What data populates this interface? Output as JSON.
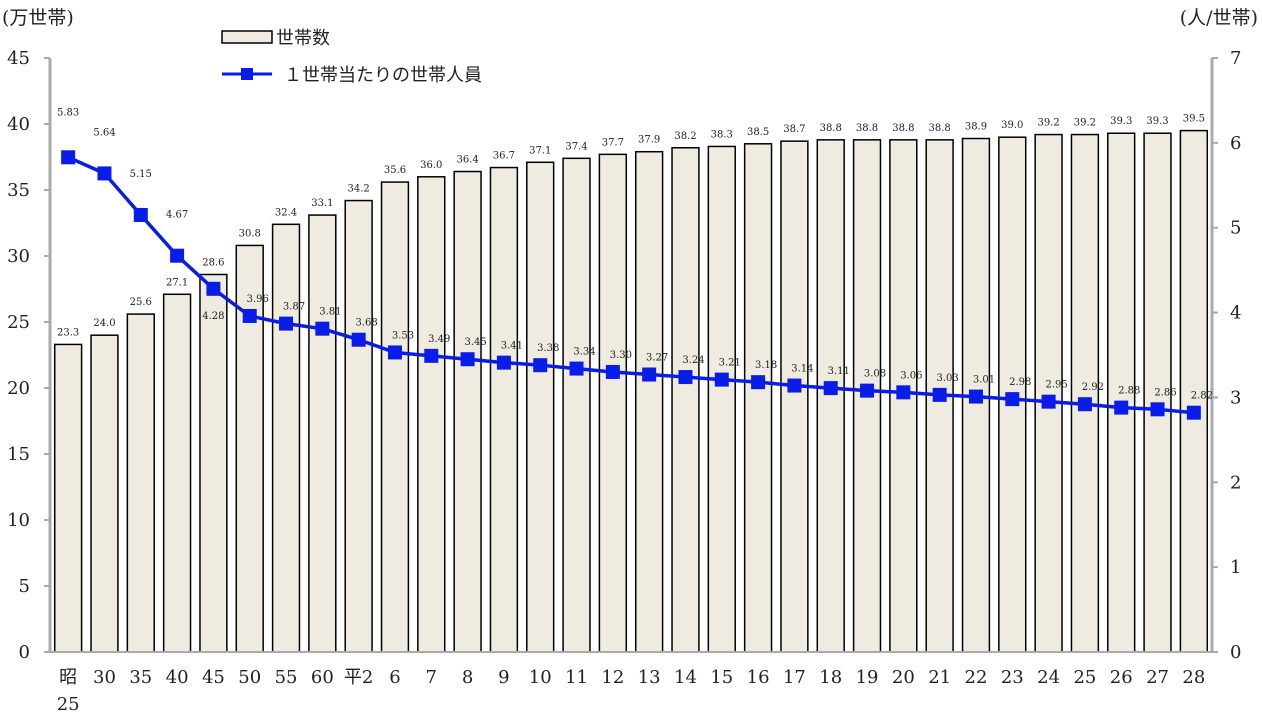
{
  "chart_data": {
    "type": "bar+line",
    "left_axis_label": "(万世帯)",
    "right_axis_label": "(人/世帯)",
    "left_ylim": [
      0,
      45
    ],
    "left_ticks": [
      0,
      5,
      10,
      15,
      20,
      25,
      30,
      35,
      40,
      45
    ],
    "right_ylim": [
      0,
      7
    ],
    "right_ticks": [
      0,
      1,
      2,
      3,
      4,
      5,
      6,
      7
    ],
    "categories": [
      "昭\n25",
      "30",
      "35",
      "40",
      "45",
      "50",
      "55",
      "60",
      "平2",
      "6",
      "7",
      "8",
      "9",
      "10",
      "11",
      "12",
      "13",
      "14",
      "15",
      "16",
      "17",
      "18",
      "19",
      "20",
      "21",
      "22",
      "23",
      "24",
      "25",
      "26",
      "27",
      "28"
    ],
    "series": [
      {
        "name": "世帯数",
        "kind": "bar",
        "axis": "left",
        "color": "#efebe0",
        "values": [
          23.3,
          24.0,
          25.6,
          27.1,
          28.6,
          30.8,
          32.4,
          33.1,
          34.2,
          35.6,
          36.0,
          36.4,
          36.7,
          37.1,
          37.4,
          37.7,
          37.9,
          38.2,
          38.3,
          38.5,
          38.7,
          38.8,
          38.8,
          38.8,
          38.8,
          38.9,
          39.0,
          39.2,
          39.2,
          39.3,
          39.3,
          39.5
        ],
        "labels": [
          "23.3",
          "24.0",
          "25.6",
          "27.1",
          "28.6",
          "30.8",
          "32.4",
          "33.1",
          "34.2",
          "35.6",
          "36.0",
          "36.4",
          "36.7",
          "37.1",
          "37.4",
          "37.7",
          "37.9",
          "38.2",
          "38.3",
          "38.5",
          "38.7",
          "38.8",
          "38.8",
          "38.8",
          "38.8",
          "38.9",
          "39.0",
          "39.2",
          "39.2",
          "39.3",
          "39.3",
          "39.5"
        ]
      },
      {
        "name": "１世帯当たりの世帯人員",
        "kind": "line",
        "axis": "right",
        "color": "#0a1de8",
        "values": [
          5.83,
          5.64,
          5.15,
          4.67,
          4.28,
          3.96,
          3.87,
          3.81,
          3.68,
          3.53,
          3.49,
          3.45,
          3.41,
          3.38,
          3.34,
          3.3,
          3.27,
          3.24,
          3.21,
          3.18,
          3.14,
          3.11,
          3.08,
          3.06,
          3.03,
          3.01,
          2.98,
          2.95,
          2.92,
          2.88,
          2.86,
          2.82
        ],
        "labels": [
          "5.83",
          "5.64",
          "5.15",
          "4.67",
          "4.28",
          "3.96",
          "3.87",
          "3.81",
          "3.68",
          "3.53",
          "3.49",
          "3.45",
          "3.41",
          "3.38",
          "3.34",
          "3.30",
          "3.27",
          "3.24",
          "3.21",
          "3.18",
          "3.14",
          "3.11",
          "3.08",
          "3.06",
          "3.03",
          "3.01",
          "2.98",
          "2.95",
          "2.92",
          "2.88",
          "2.86",
          "2.82"
        ]
      }
    ],
    "legend": "top-left",
    "grid": false
  }
}
